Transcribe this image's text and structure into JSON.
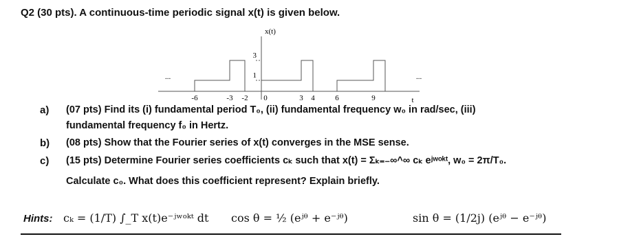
{
  "header": {
    "title": "Q2 (30 pts). A continuous-time periodic signal x(t) is given below."
  },
  "figure": {
    "y_label": "x(t)",
    "x_label": "t",
    "y_ticks": [
      "3",
      "1"
    ],
    "x_ticks": [
      "-6",
      "-3",
      "-2",
      "0",
      "3",
      "4",
      "6",
      "9"
    ],
    "ellipsis_left": "...",
    "ellipsis_right": "..."
  },
  "parts": [
    {
      "label": "a)",
      "lines": [
        "(07 pts) Find its (i) fundamental period T₀, (ii) fundamental frequency w₀ in rad/sec, (iii)",
        "fundamental frequency f₀ in Hertz."
      ]
    },
    {
      "label": "b)",
      "lines": [
        "(08 pts) Show that the Fourier series of x(t) converges in the MSE sense."
      ]
    },
    {
      "label": "c)",
      "lines": [
        "(15 pts) Determine Fourier series coefficients cₖ such that x(t) = Σₖ₌₋∞^∞ cₖ eʲʷᵒᵏᵗ,  w₀ = 2π/T₀.",
        "Calculate c₀. What does this coefficient represent? Explain briefly."
      ]
    }
  ],
  "hints": {
    "label": "Hints:",
    "formulas": [
      "cₖ = (1/T) ∫_T x(t)e⁻ʲʷᵒᵏᵗ dt",
      "cos θ = ½ (eʲᶿ + e⁻ʲᶿ)",
      "sin θ = (1/2j) (eʲᶿ − e⁻ʲᶿ)"
    ]
  }
}
